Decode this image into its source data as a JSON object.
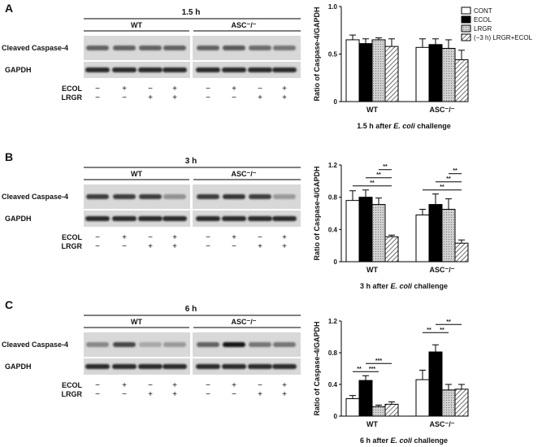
{
  "panels": [
    {
      "letter": "A",
      "time_label": "1.5 h",
      "groups": [
        "WT",
        "ASC⁻/⁻"
      ],
      "blot_rows": [
        "Cleaved Caspase-4",
        "GAPDH"
      ],
      "treatments": [
        {
          "label": "ECOL",
          "signs": [
            "−",
            "+",
            "−",
            "+",
            "−",
            "+",
            "−",
            "+"
          ]
        },
        {
          "label": "LRGR",
          "signs": [
            "−",
            "−",
            "+",
            "+",
            "−",
            "−",
            "+",
            "+"
          ]
        }
      ],
      "band_intensity": [
        0.55,
        0.55,
        0.55,
        0.55,
        0.55,
        0.6,
        0.5,
        0.45
      ],
      "gapdh_intensity": [
        0.85,
        0.85,
        0.85,
        0.85,
        0.85,
        0.85,
        0.85,
        0.85
      ]
    },
    {
      "letter": "B",
      "time_label": "3 h",
      "groups": [
        "WT",
        "ASC⁻/⁻"
      ],
      "blot_rows": [
        "Cleaved Caspase-4",
        "GAPDH"
      ],
      "treatments": [
        {
          "label": "ECOL",
          "signs": [
            "−",
            "+",
            "−",
            "+",
            "−",
            "+",
            "−",
            "+"
          ]
        },
        {
          "label": "LRGR",
          "signs": [
            "−",
            "−",
            "+",
            "+",
            "−",
            "−",
            "+",
            "+"
          ]
        }
      ],
      "band_intensity": [
        0.75,
        0.75,
        0.75,
        0.3,
        0.75,
        0.8,
        0.75,
        0.25
      ],
      "gapdh_intensity": [
        0.85,
        0.85,
        0.85,
        0.85,
        0.85,
        0.85,
        0.85,
        0.85
      ]
    },
    {
      "letter": "C",
      "time_label": "6 h",
      "groups": [
        "WT",
        "ASC⁻/⁻"
      ],
      "blot_rows": [
        "Cleaved Caspase-4",
        "GAPDH"
      ],
      "treatments": [
        {
          "label": "ECOL",
          "signs": [
            "−",
            "+",
            "−",
            "+",
            "−",
            "+",
            "−",
            "+"
          ]
        },
        {
          "label": "LRGR",
          "signs": [
            "−",
            "−",
            "+",
            "+",
            "−",
            "−",
            "+",
            "+"
          ]
        }
      ],
      "band_intensity": [
        0.35,
        0.7,
        0.18,
        0.25,
        0.55,
        0.95,
        0.45,
        0.45
      ],
      "gapdh_intensity": [
        0.85,
        0.85,
        0.85,
        0.85,
        0.85,
        0.85,
        0.85,
        0.85
      ]
    }
  ],
  "legend": {
    "entries": [
      "CONT",
      "ECOL",
      "LRGR",
      "(−3 h) LRGR+ECOL"
    ],
    "fills": [
      "white",
      "black",
      "dotted",
      "hatched"
    ],
    "placement": "top-right"
  },
  "chart_data": [
    {
      "type": "bar",
      "ylabel": "Ratio of Caspase-4/GAPDH",
      "xlabel_prefix": "1.5 h after ",
      "xlabel_italic": "E. coli",
      "xlabel_suffix": " challenge",
      "categories": [
        "WT",
        "ASC⁻/⁻"
      ],
      "ylim": [
        0,
        1.0
      ],
      "yticks": [
        "0",
        "0.5",
        "1.0"
      ],
      "series": [
        {
          "name": "CONT",
          "values": [
            0.65,
            0.57
          ],
          "errors": [
            0.05,
            0.09
          ]
        },
        {
          "name": "ECOL",
          "values": [
            0.61,
            0.6
          ],
          "errors": [
            0.05,
            0.06
          ]
        },
        {
          "name": "LRGR",
          "values": [
            0.65,
            0.56
          ],
          "errors": [
            0.02,
            0.09
          ]
        },
        {
          "name": "(−3 h) LRGR+ECOL",
          "values": [
            0.58,
            0.44
          ],
          "errors": [
            0.08,
            0.1
          ]
        }
      ],
      "significance": []
    },
    {
      "type": "bar",
      "ylabel": "Ratio of Caspase-4/GAPDH",
      "xlabel_prefix": "3 h after ",
      "xlabel_italic": "E. coli",
      "xlabel_suffix": " challenge",
      "categories": [
        "WT",
        "ASC⁻/⁻"
      ],
      "ylim": [
        0,
        1.2
      ],
      "yticks": [
        "0",
        "0.4",
        "0.8",
        "1.2"
      ],
      "series": [
        {
          "name": "CONT",
          "values": [
            0.76,
            0.58
          ],
          "errors": [
            0.12,
            0.07
          ]
        },
        {
          "name": "ECOL",
          "values": [
            0.8,
            0.71
          ],
          "errors": [
            0.09,
            0.13
          ]
        },
        {
          "name": "LRGR",
          "values": [
            0.71,
            0.65
          ],
          "errors": [
            0.08,
            0.13
          ]
        },
        {
          "name": "(−3 h) LRGR+ECOL",
          "values": [
            0.31,
            0.23
          ],
          "errors": [
            0.02,
            0.04
          ]
        }
      ],
      "significance": [
        {
          "group": 0,
          "from": 0,
          "to": 3,
          "level": 0,
          "label": "**"
        },
        {
          "group": 0,
          "from": 1,
          "to": 3,
          "level": 1,
          "label": "**"
        },
        {
          "group": 0,
          "from": 2,
          "to": 3,
          "level": 2,
          "label": "**"
        },
        {
          "group": 1,
          "from": 0,
          "to": 3,
          "level": 0,
          "label": "**"
        },
        {
          "group": 1,
          "from": 1,
          "to": 3,
          "level": 1,
          "label": "**"
        },
        {
          "group": 1,
          "from": 2,
          "to": 3,
          "level": 2,
          "label": "**"
        }
      ]
    },
    {
      "type": "bar",
      "ylabel": "Ratio of Caspase-4/GAPDH",
      "xlabel_prefix": "6 h after ",
      "xlabel_italic": "E. coli",
      "xlabel_suffix": " challenge",
      "categories": [
        "WT",
        "ASC⁻/⁻"
      ],
      "ylim": [
        0,
        1.2
      ],
      "yticks": [
        "0",
        "0.4",
        "0.8",
        "1.2"
      ],
      "series": [
        {
          "name": "CONT",
          "values": [
            0.22,
            0.46
          ],
          "errors": [
            0.04,
            0.12
          ]
        },
        {
          "name": "ECOL",
          "values": [
            0.45,
            0.81
          ],
          "errors": [
            0.06,
            0.09
          ]
        },
        {
          "name": "LRGR",
          "values": [
            0.12,
            0.33
          ],
          "errors": [
            0.02,
            0.07
          ]
        },
        {
          "name": "(−3 h) LRGR+ECOL",
          "values": [
            0.15,
            0.34
          ],
          "errors": [
            0.03,
            0.06
          ]
        }
      ],
      "significance": [
        {
          "group": 0,
          "from": 0,
          "to": 1,
          "level": 0,
          "label": "**"
        },
        {
          "group": 0,
          "from": 1,
          "to": 2,
          "level": 0,
          "label": "***"
        },
        {
          "group": 0,
          "from": 1,
          "to": 3,
          "level": 1,
          "label": "***"
        },
        {
          "group": 1,
          "from": 0,
          "to": 1,
          "level": 1,
          "label": "**"
        },
        {
          "group": 1,
          "from": 1,
          "to": 2,
          "level": 1,
          "label": "**"
        },
        {
          "group": 1,
          "from": 1,
          "to": 3,
          "level": 2,
          "label": "**"
        }
      ]
    }
  ]
}
